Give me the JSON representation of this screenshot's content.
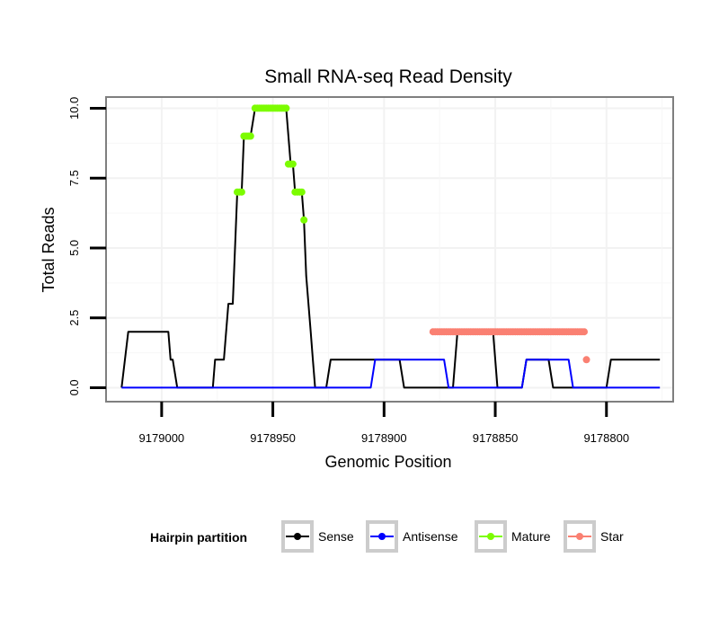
{
  "chart_data": {
    "type": "line",
    "title": "Small RNA-seq Read Density",
    "xlabel": "Genomic Position",
    "ylabel": "Total Reads",
    "x_reversed": true,
    "xlim": [
      9179025,
      9178770
    ],
    "ylim": [
      -0.5,
      10.4
    ],
    "x_ticks": [
      9179000,
      9178950,
      9178900,
      9178850,
      9178800
    ],
    "x_tick_labels": [
      "9179000",
      "9178950",
      "9178900",
      "9178850",
      "9178800"
    ],
    "y_ticks": [
      0,
      2.5,
      5,
      7.5,
      10
    ],
    "y_tick_labels": [
      "0.0",
      "2.5",
      "5.0",
      "7.5",
      "10.0"
    ],
    "grid": true,
    "legend": {
      "title": "Hairpin partition",
      "position": "bottom",
      "entries": [
        {
          "label": "Sense",
          "color": "#000000"
        },
        {
          "label": "Antisense",
          "color": "#0000ff"
        },
        {
          "label": "Mature",
          "color": "#7cfc00"
        },
        {
          "label": "Star",
          "color": "#fa8072"
        }
      ]
    },
    "series": [
      {
        "name": "Sense",
        "color": "#000000",
        "kind": "line",
        "x": [
          9179018,
          9179015,
          9178997,
          9178996,
          9178995,
          9178993,
          9178977,
          9178976,
          9178972,
          9178970,
          9178968,
          9178966,
          9178964,
          9178963,
          9178960,
          9178958,
          9178954,
          9178953,
          9178952,
          9178951,
          9178950,
          9178949,
          9178948,
          9178947,
          9178946,
          9178945,
          9178944,
          9178943,
          9178942,
          9178941,
          9178940,
          9178939,
          9178938,
          9178937,
          9178936,
          9178935,
          9178934,
          9178933,
          9178932,
          9178931,
          9178930,
          9178929,
          9178928,
          9178927,
          9178926,
          9178924,
          9178922,
          9178921,
          9178893,
          9178891,
          9178869,
          9178867,
          9178851,
          9178849,
          9178838,
          9178836,
          9178826,
          9178824,
          9178823,
          9178822,
          9178821,
          9178820,
          9178819,
          9178818,
          9178817,
          9178816,
          9178815,
          9178814,
          9178813,
          9178812,
          9178810,
          9178800,
          9178798,
          9178776
        ],
        "y": [
          0,
          2,
          2,
          1,
          1,
          0,
          0,
          1,
          1,
          3,
          3,
          7,
          7,
          9,
          9,
          10,
          10,
          10,
          10,
          10,
          10,
          10,
          10,
          10,
          10,
          10,
          10,
          9,
          8,
          8,
          7,
          7,
          7,
          7,
          6,
          4,
          3,
          2,
          1,
          0,
          0,
          0,
          0,
          0,
          0,
          1,
          1,
          1,
          1,
          0,
          0,
          2,
          2,
          0,
          0,
          1,
          1,
          0,
          0,
          0,
          0,
          0,
          0,
          0,
          0,
          0,
          0,
          0,
          0,
          0,
          0,
          0,
          1,
          1
        ]
      },
      {
        "name": "Antisense",
        "color": "#0000ff",
        "kind": "line",
        "x": [
          9179018,
          9178906,
          9178904,
          9178873,
          9178871,
          9178838,
          9178836,
          9178817,
          9178815,
          9178776
        ],
        "y": [
          0,
          0,
          1,
          1,
          0,
          0,
          1,
          1,
          0,
          0
        ]
      },
      {
        "name": "Mature",
        "color": "#7cfc00",
        "kind": "points",
        "x": [
          9178966,
          9178965,
          9178964,
          9178963,
          9178962,
          9178961,
          9178960,
          9178958,
          9178957,
          9178956,
          9178955,
          9178954,
          9178953,
          9178952,
          9178951,
          9178950,
          9178949,
          9178948,
          9178947,
          9178946,
          9178945,
          9178944,
          9178943,
          9178942,
          9178941,
          9178940,
          9178939,
          9178938,
          9178937,
          9178936
        ],
        "y": [
          7,
          7,
          7,
          9,
          9,
          9,
          9,
          10,
          10,
          10,
          10,
          10,
          10,
          10,
          10,
          10,
          10,
          10,
          10,
          10,
          10,
          10,
          8,
          8,
          8,
          7,
          7,
          7,
          7,
          6
        ]
      },
      {
        "name": "Star",
        "color": "#fa8072",
        "kind": "points",
        "x": [
          9178878,
          9178877,
          9178876,
          9178875,
          9178874,
          9178873,
          9178872,
          9178871,
          9178870,
          9178869,
          9178868,
          9178867,
          9178866,
          9178865,
          9178864,
          9178863,
          9178862,
          9178861,
          9178860,
          9178859,
          9178858,
          9178857,
          9178856,
          9178855,
          9178854,
          9178853,
          9178852,
          9178851,
          9178850,
          9178849,
          9178848,
          9178847,
          9178846,
          9178845,
          9178844,
          9178843,
          9178842,
          9178841,
          9178840,
          9178839,
          9178838,
          9178837,
          9178836,
          9178835,
          9178834,
          9178833,
          9178832,
          9178831,
          9178830,
          9178829,
          9178828,
          9178827,
          9178826,
          9178825,
          9178824,
          9178823,
          9178822,
          9178821,
          9178820,
          9178819,
          9178818,
          9178817,
          9178816,
          9178815,
          9178814,
          9178813,
          9178812,
          9178811,
          9178810,
          9178809
        ],
        "y": [
          2,
          2,
          2,
          2,
          2,
          2,
          2,
          2,
          2,
          2,
          2,
          2,
          2,
          2,
          2,
          2,
          2,
          2,
          2,
          2,
          2,
          2,
          2,
          2,
          2,
          2,
          2,
          2,
          2,
          2,
          2,
          2,
          2,
          2,
          2,
          2,
          2,
          2,
          2,
          2,
          2,
          2,
          2,
          2,
          2,
          2,
          2,
          2,
          2,
          2,
          2,
          2,
          2,
          2,
          2,
          2,
          2,
          2,
          2,
          2,
          2,
          2,
          2,
          2,
          2,
          2,
          2,
          2,
          2,
          1
        ]
      }
    ]
  }
}
